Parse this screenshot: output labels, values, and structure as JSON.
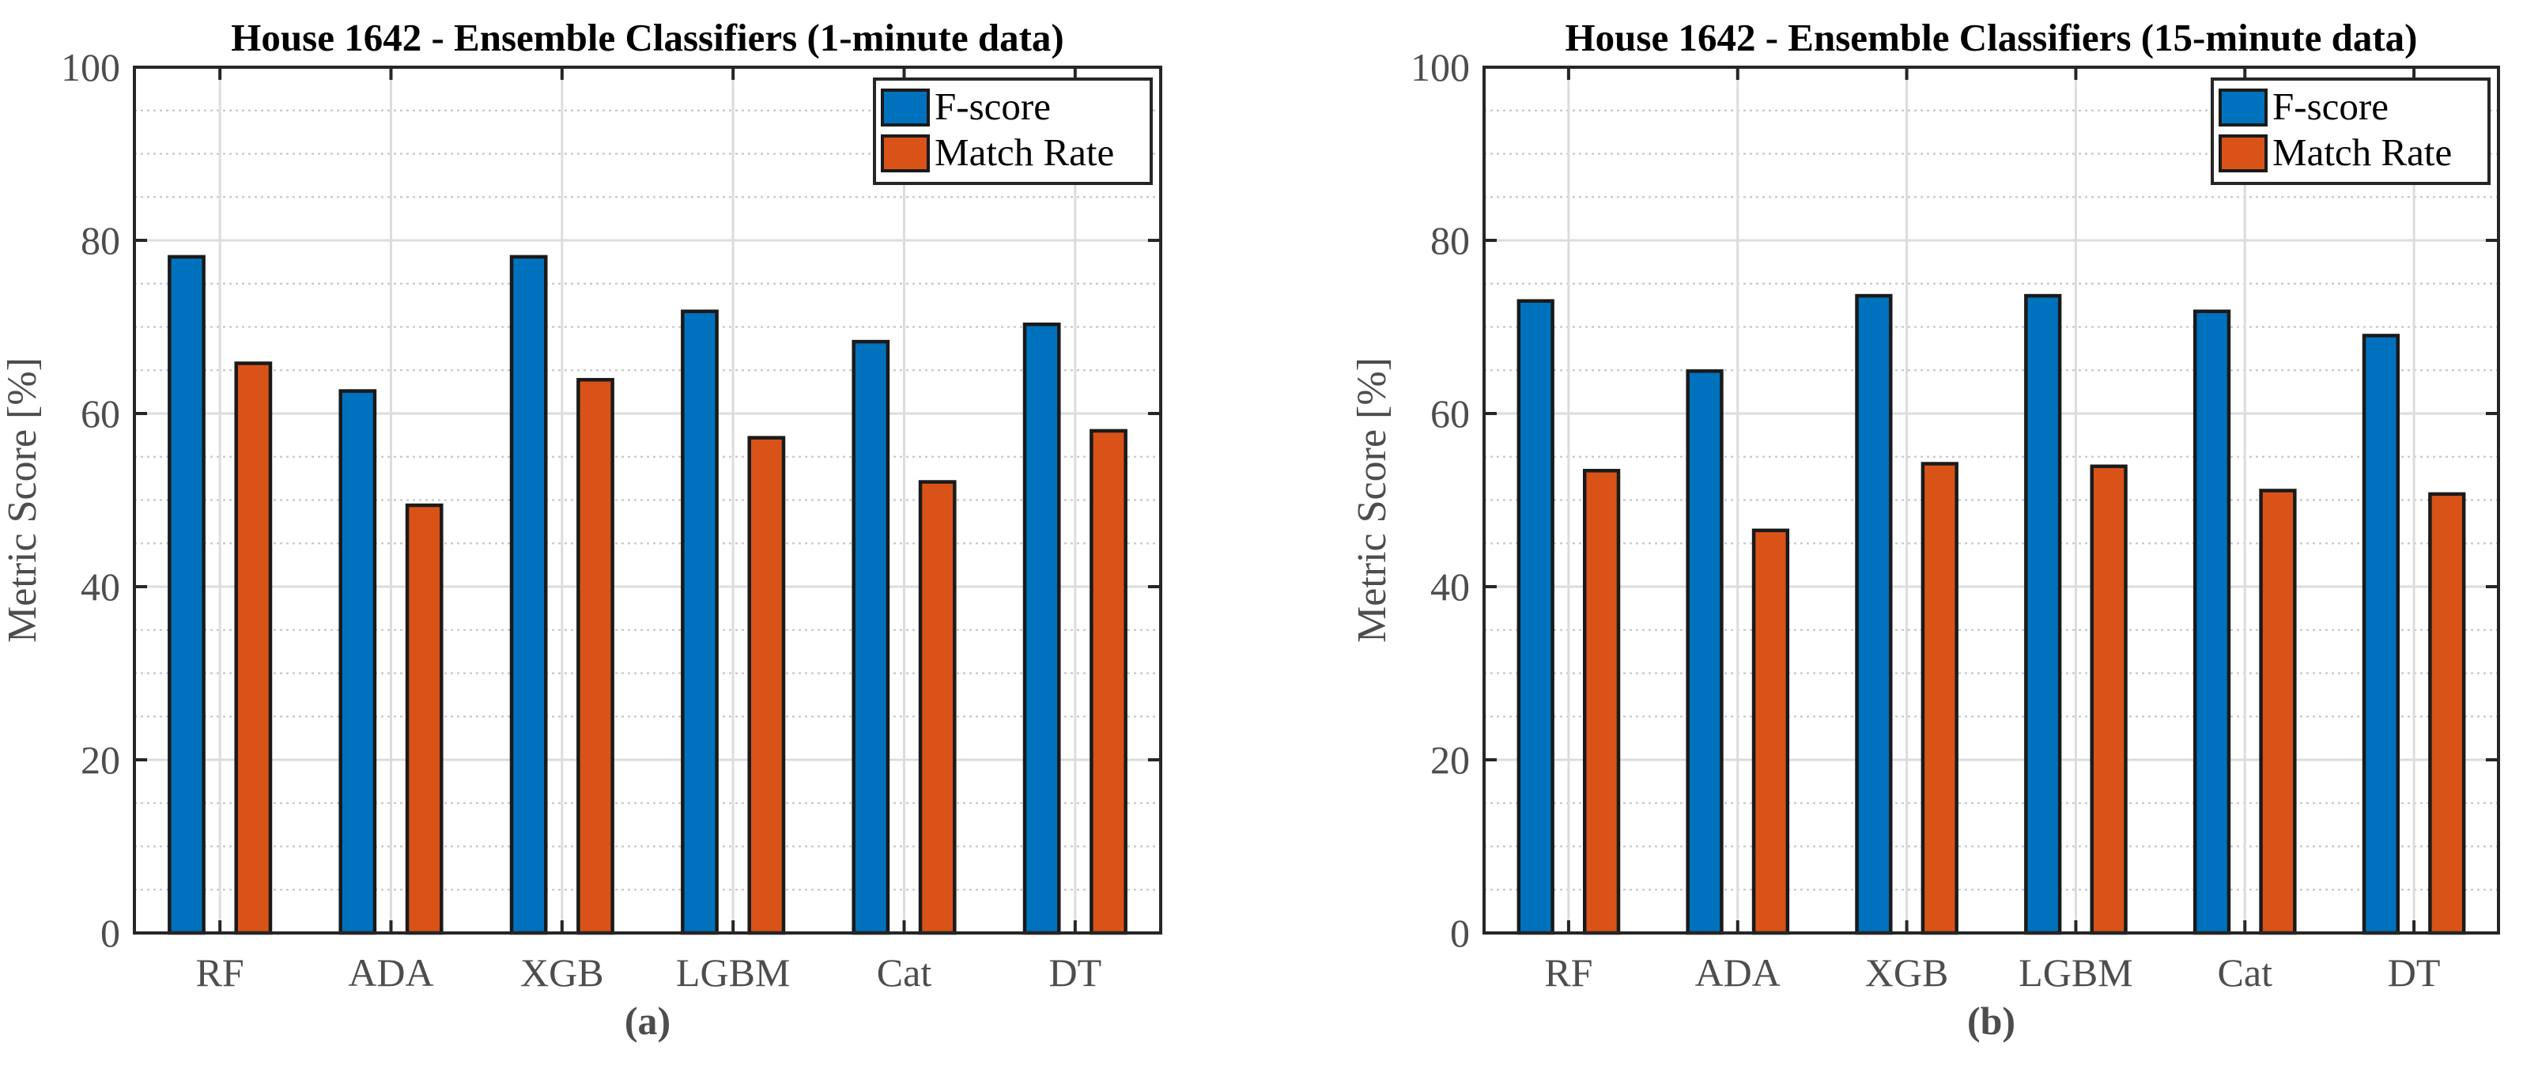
{
  "colors": {
    "fscore": "#0072BD",
    "match_rate": "#D95319",
    "axis": "#262626",
    "tick_text": "#4d4d4d",
    "grid_major": "#dcdcdc",
    "grid_minor": "#c8c8c8",
    "bar_edge": "#1a1a1a"
  },
  "chart_data": [
    {
      "type": "bar",
      "title": "House 1642 - Ensemble Classifiers (1-minute data)",
      "caption": "(a)",
      "xlabel": "",
      "ylabel": "Metric Score [%]",
      "ylim": [
        0,
        100
      ],
      "yticks": [
        "0",
        "20",
        "40",
        "60",
        "80",
        "100"
      ],
      "grid": true,
      "legend_position": "top-right",
      "categories": [
        "RF",
        "ADA",
        "XGB",
        "LGBM",
        "Cat",
        "DT"
      ],
      "series": [
        {
          "name": "F-score",
          "values": [
            78.1,
            62.6,
            78.1,
            71.8,
            68.3,
            70.3
          ]
        },
        {
          "name": "Match Rate",
          "values": [
            65.8,
            49.4,
            63.9,
            57.2,
            52.1,
            58.0
          ]
        }
      ]
    },
    {
      "type": "bar",
      "title": "House 1642 - Ensemble Classifiers (15-minute data)",
      "caption": "(b)",
      "xlabel": "",
      "ylabel": "Metric Score [%]",
      "ylim": [
        0,
        100
      ],
      "yticks": [
        "0",
        "20",
        "40",
        "60",
        "80",
        "100"
      ],
      "grid": true,
      "legend_position": "top-right",
      "categories": [
        "RF",
        "ADA",
        "XGB",
        "LGBM",
        "Cat",
        "DT"
      ],
      "series": [
        {
          "name": "F-score",
          "values": [
            73.0,
            64.9,
            73.6,
            73.6,
            71.8,
            69.0
          ]
        },
        {
          "name": "Match Rate",
          "values": [
            53.4,
            46.5,
            54.2,
            53.9,
            51.1,
            50.7
          ]
        }
      ]
    }
  ]
}
